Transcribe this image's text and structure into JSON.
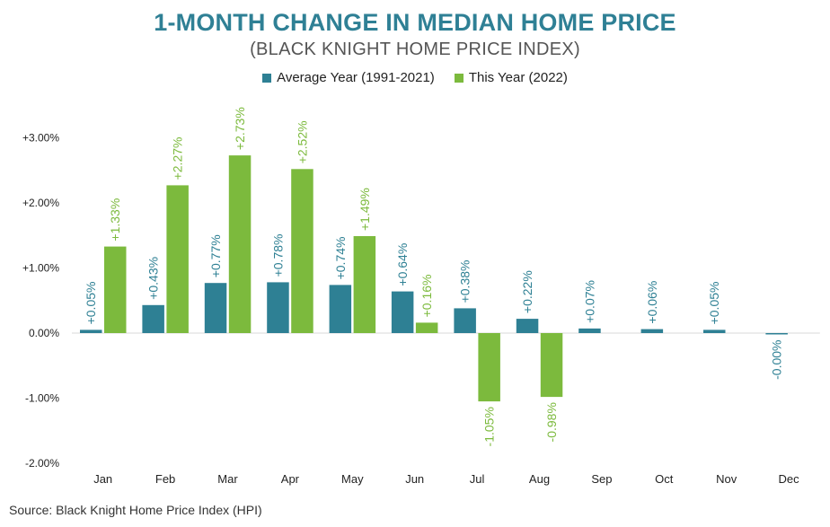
{
  "title": "1-MONTH CHANGE IN MEDIAN HOME PRICE",
  "subtitle": "(BLACK KNIGHT HOME PRICE INDEX)",
  "legend": {
    "series_a": "Average Year (1991-2021)",
    "series_b": "This Year (2022)"
  },
  "source": "Source: Black Knight Home Price Index (HPI)",
  "colors": {
    "average": "#2e8094",
    "this_year": "#7cba3d",
    "title": "#2f8095"
  },
  "chart_data": {
    "type": "bar",
    "categories": [
      "Jan",
      "Feb",
      "Mar",
      "Apr",
      "May",
      "Jun",
      "Jul",
      "Aug",
      "Sep",
      "Oct",
      "Nov",
      "Dec"
    ],
    "series": [
      {
        "name": "Average Year (1991-2021)",
        "values": [
          0.05,
          0.43,
          0.77,
          0.78,
          0.74,
          0.64,
          0.38,
          0.22,
          0.07,
          0.06,
          0.05,
          -0.001
        ],
        "labels": [
          "+0.05%",
          "+0.43%",
          "+0.77%",
          "+0.78%",
          "+0.74%",
          "+0.64%",
          "+0.38%",
          "+0.22%",
          "+0.07%",
          "+0.06%",
          "+0.05%",
          "-0.00%"
        ]
      },
      {
        "name": "This Year (2022)",
        "values": [
          1.33,
          2.27,
          2.73,
          2.52,
          1.49,
          0.16,
          -1.05,
          -0.98,
          null,
          null,
          null,
          null
        ],
        "labels": [
          "+1.33%",
          "+2.27%",
          "+2.73%",
          "+2.52%",
          "+1.49%",
          "+0.16%",
          "-1.05%",
          "-0.98%",
          null,
          null,
          null,
          null
        ]
      }
    ],
    "yticks": [
      -2,
      -1,
      0,
      1,
      2,
      3
    ],
    "ytick_labels": [
      "-2.00%",
      "-1.00%",
      "0.00%",
      "+1.00%",
      "+2.00%",
      "+3.00%"
    ],
    "ylim": [
      -2,
      3
    ],
    "grid": false,
    "legend_position": "top-center"
  }
}
